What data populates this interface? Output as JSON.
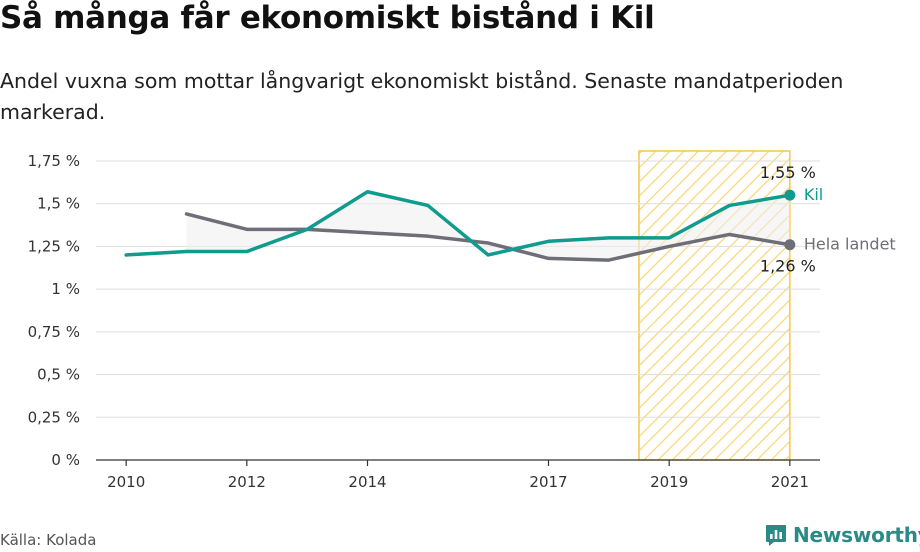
{
  "title": "Så många får ekonomiskt bistånd i Kil",
  "subtitle": "Andel vuxna som mottar långvarigt ekonomiskt bistånd. Senaste mandatperioden markerad.",
  "source": "Källa: Kolada",
  "brand": "Newsworthy",
  "brand_icon": "newsworthy-logo-icon",
  "chart_data": {
    "type": "line",
    "x": [
      2010,
      2011,
      2012,
      2013,
      2014,
      2015,
      2016,
      2017,
      2018,
      2019,
      2020,
      2021
    ],
    "x_ticks": [
      2010,
      2012,
      2014,
      2017,
      2019,
      2021
    ],
    "x_tick_labels": [
      "2010",
      "2012",
      "2014",
      "2017",
      "2019",
      "2021"
    ],
    "y_ticks": [
      0,
      0.25,
      0.5,
      0.75,
      1,
      1.25,
      1.5,
      1.75
    ],
    "y_tick_labels": [
      "0 %",
      "0,25 %",
      "0,5 %",
      "0,75 %",
      "1 %",
      "1,25 %",
      "1,5 %",
      "1,75 %"
    ],
    "xlim": [
      2009.5,
      2021.5
    ],
    "ylim": [
      0,
      1.75
    ],
    "grid": true,
    "highlight": {
      "from": 2018.5,
      "to": 2021.0,
      "pattern": "diagonal-hatch",
      "color": "#f6c744"
    },
    "series": [
      {
        "name": "Kil",
        "color": "#0f9b8e",
        "values": [
          1.2,
          1.22,
          1.22,
          1.35,
          1.57,
          1.49,
          1.2,
          1.28,
          1.3,
          1.3,
          1.49,
          1.55
        ],
        "end_label": "1,55 %"
      },
      {
        "name": "Hela landet",
        "color": "#6e6e78",
        "values": [
          null,
          1.44,
          1.35,
          1.35,
          1.33,
          1.31,
          1.27,
          1.18,
          1.17,
          1.25,
          1.32,
          1.26
        ],
        "end_label": "1,26 %"
      }
    ]
  }
}
